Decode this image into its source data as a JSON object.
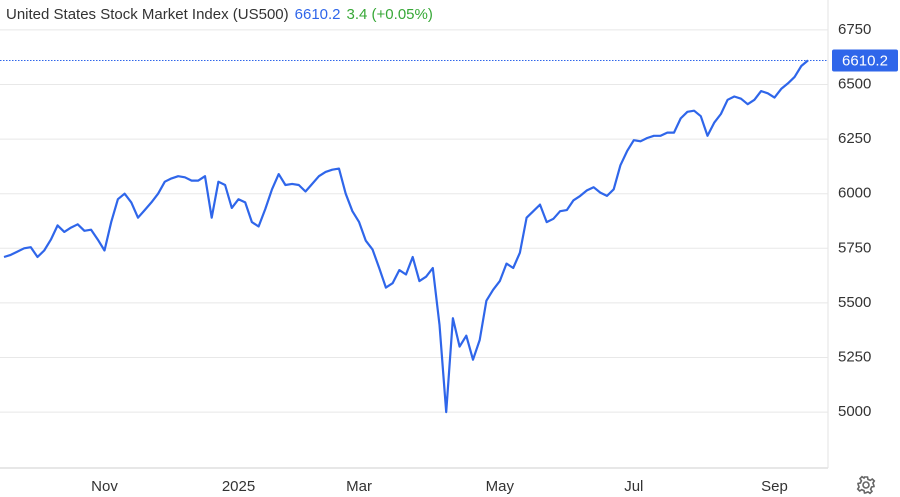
{
  "chart_data": {
    "type": "line",
    "title": "United States Stock Market Index (US500)",
    "change": "3.4 (+0.05%)",
    "color": "#2f66ea",
    "change_color": "#37a837",
    "categories": [
      null,
      null,
      null,
      null,
      null,
      null,
      null,
      null,
      null,
      null,
      null,
      null,
      null,
      null,
      null,
      "Nov",
      null,
      null,
      null,
      null,
      null,
      null,
      null,
      null,
      null,
      null,
      null,
      null,
      null,
      null,
      null,
      null,
      null,
      null,
      null,
      "2025",
      null,
      null,
      null,
      null,
      null,
      null,
      null,
      null,
      null,
      null,
      null,
      null,
      null,
      null,
      null,
      null,
      null,
      "Mar",
      null,
      null,
      null,
      null,
      null,
      null,
      null,
      null,
      null,
      null,
      null,
      null,
      null,
      null,
      null,
      null,
      null,
      null,
      null,
      null,
      "May",
      null,
      null,
      null,
      null,
      null,
      null,
      null,
      null,
      null,
      null,
      null,
      null,
      null,
      null,
      null,
      null,
      null,
      null,
      null,
      "Jul",
      null,
      null,
      null,
      null,
      null,
      null,
      null,
      null,
      null,
      null,
      null,
      null,
      null,
      null,
      null,
      null,
      null,
      null,
      null,
      null,
      "Sep",
      null,
      null,
      null,
      null,
      null
    ],
    "values": [
      5710,
      5720,
      5735,
      5750,
      5755,
      5710,
      5740,
      5790,
      5855,
      5825,
      5845,
      5860,
      5830,
      5835,
      5790,
      5740,
      5870,
      5975,
      6000,
      5960,
      5890,
      5925,
      5960,
      6000,
      6055,
      6070,
      6080,
      6075,
      6060,
      6060,
      6080,
      5890,
      6055,
      6040,
      5935,
      5975,
      5960,
      5870,
      5850,
      5930,
      6020,
      6090,
      6040,
      6045,
      6040,
      6010,
      6045,
      6080,
      6100,
      6110,
      6115,
      6000,
      5920,
      5870,
      5785,
      5745,
      5660,
      5570,
      5590,
      5650,
      5630,
      5710,
      5600,
      5620,
      5660,
      5400,
      5000,
      5430,
      5300,
      5350,
      5240,
      5330,
      5510,
      5560,
      5600,
      5680,
      5660,
      5730,
      5890,
      5920,
      5950,
      5870,
      5885,
      5920,
      5925,
      5970,
      5990,
      6015,
      6030,
      6005,
      5990,
      6020,
      6130,
      6195,
      6245,
      6240,
      6255,
      6265,
      6265,
      6280,
      6280,
      6345,
      6375,
      6380,
      6355,
      6265,
      6325,
      6365,
      6430,
      6445,
      6435,
      6410,
      6430,
      6470,
      6460,
      6440,
      6480,
      6505,
      6535,
      6585,
      6610.2
    ],
    "ylim": [
      4744,
      6887
    ],
    "yticks": [
      5000,
      5250,
      5500,
      5750,
      6000,
      6250,
      6500,
      6750
    ],
    "grid": true
  }
}
